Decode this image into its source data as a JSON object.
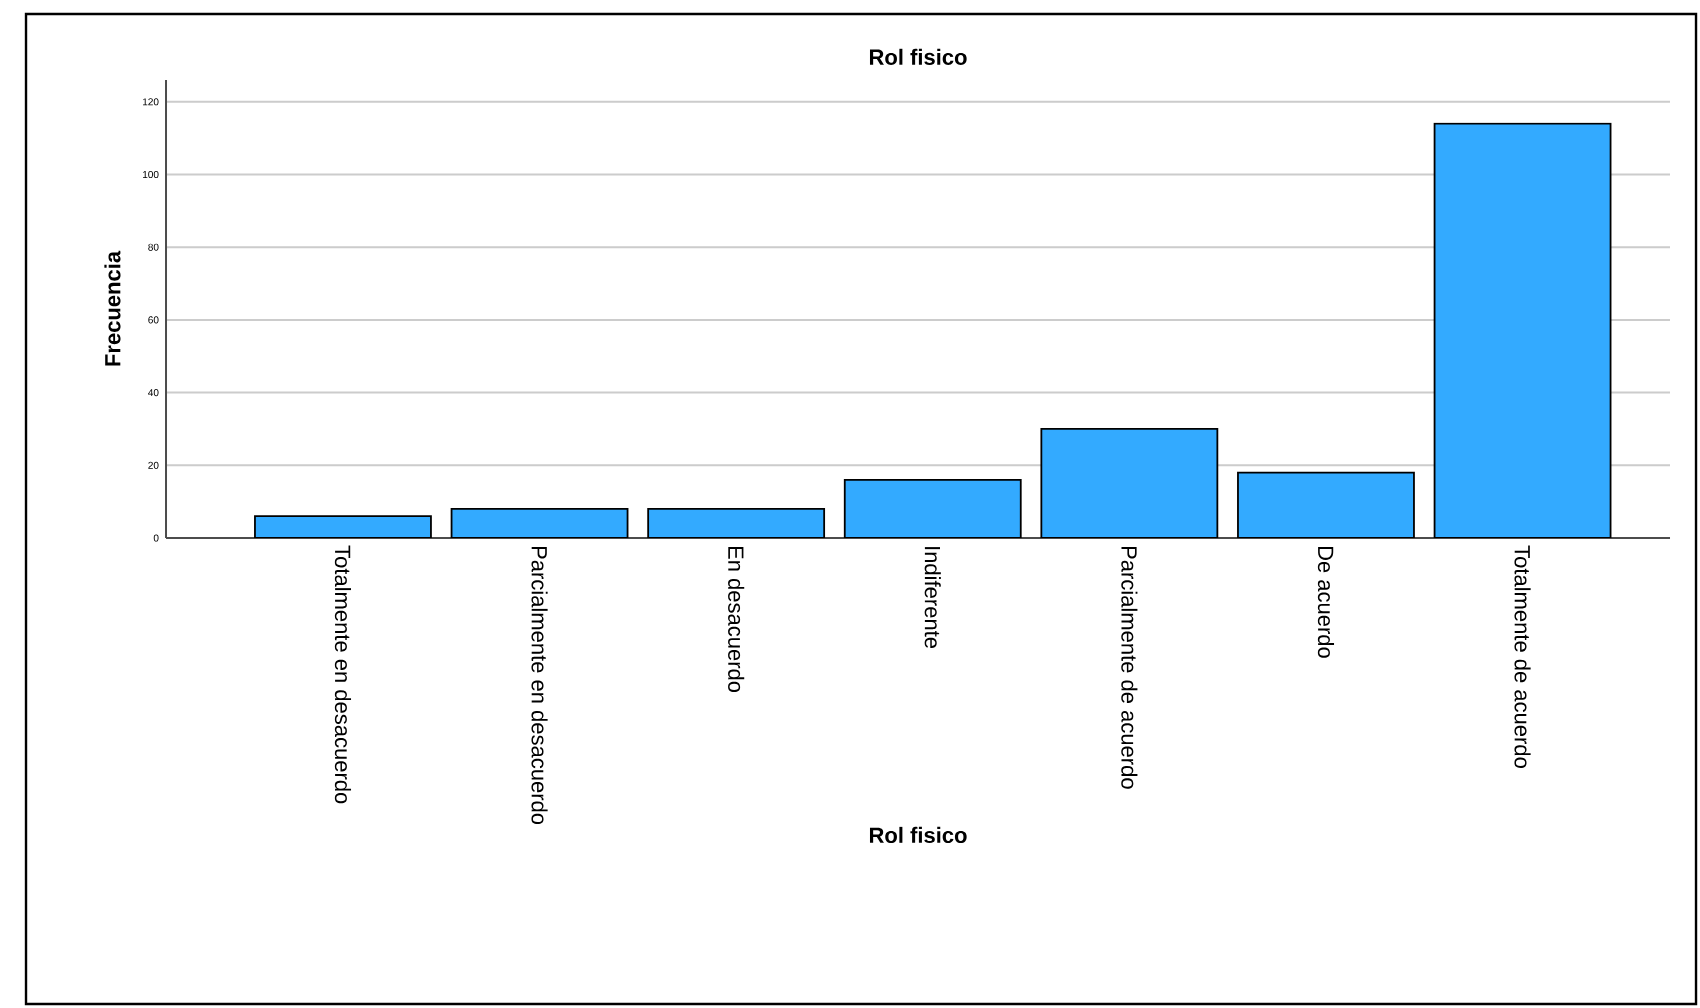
{
  "chart_data": {
    "type": "bar",
    "title": "Rol fisico",
    "xlabel": "Rol fisico",
    "ylabel": "Frecuencia",
    "categories": [
      "Totalmente en desacuerdo",
      "Parcialmente en desacuerdo",
      "En desacuerdo",
      "Indiferente",
      "Parcialmente de acuerdo",
      "De acuerdo",
      "Totalmente de acuerdo"
    ],
    "values": [
      6,
      8,
      8,
      16,
      30,
      18,
      114
    ],
    "color": "#33aaff",
    "ylim": [
      0,
      126
    ],
    "yticks": [
      0,
      20,
      40,
      60,
      80,
      100,
      120
    ],
    "grid": "y"
  }
}
